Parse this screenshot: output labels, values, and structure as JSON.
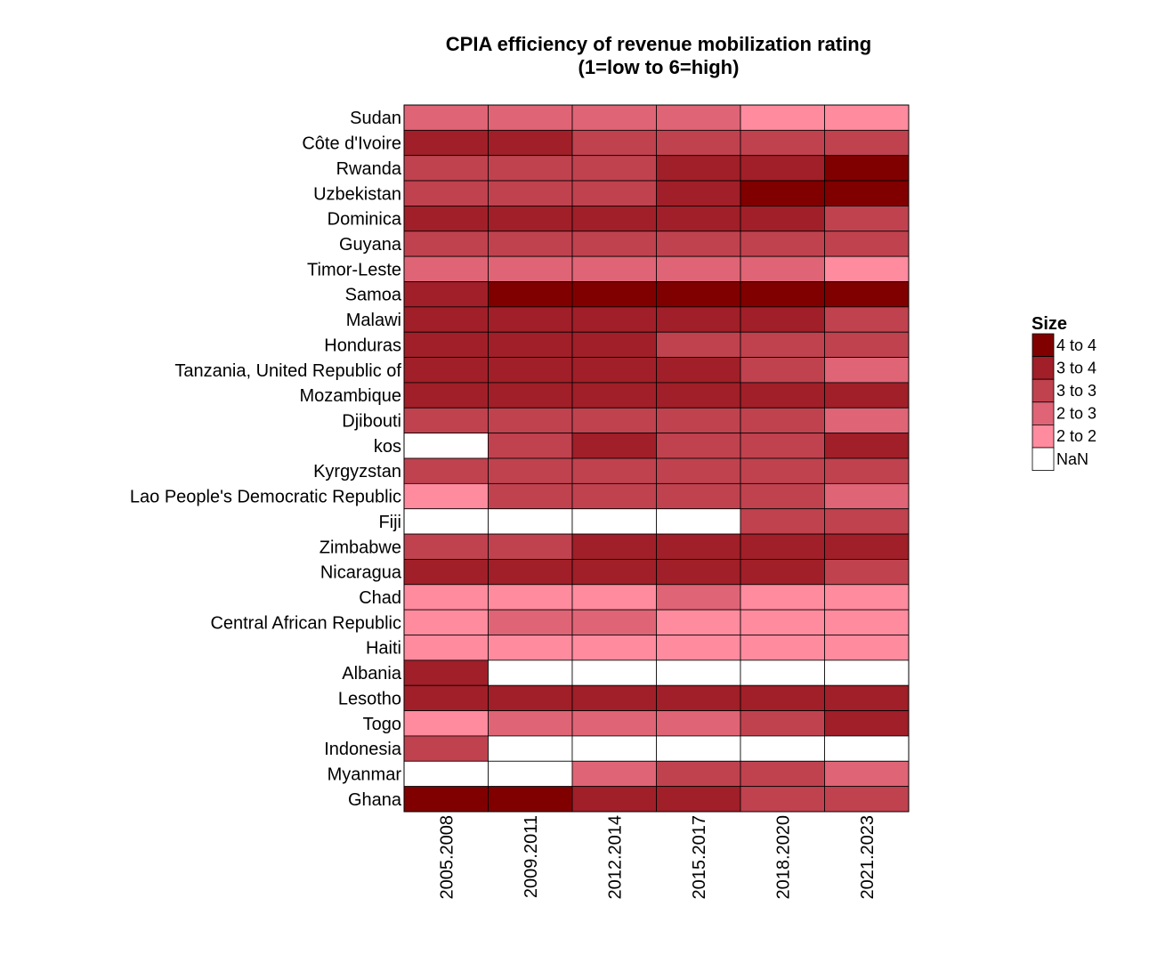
{
  "chart_data": {
    "type": "heatmap",
    "title": [
      "CPIA efficiency of revenue mobilization rating",
      "(1=low to 6=high)"
    ],
    "columns": [
      "2005.2008",
      "2009.2011",
      "2012.2014",
      "2015.2017",
      "2018.2020",
      "2021.2023"
    ],
    "rows": [
      "Sudan",
      "Côte d'Ivoire",
      "Rwanda",
      "Uzbekistan",
      "Dominica",
      "Guyana",
      "Timor-Leste",
      "Samoa",
      "Malawi",
      "Honduras",
      "Tanzania, United Republic of",
      "Mozambique",
      "Djibouti",
      "kos",
      "Kyrgyzstan",
      "Lao People's Democratic Republic",
      "Fiji",
      "Zimbabwe",
      "Nicaragua",
      "Chad",
      "Central African Republic",
      "Haiti",
      "Albania",
      "Lesotho",
      "Togo",
      "Indonesia",
      "Myanmar",
      "Ghana"
    ],
    "values": [
      [
        2.5,
        2.5,
        2.5,
        2.5,
        2.0,
        2.0
      ],
      [
        3.5,
        3.5,
        3.0,
        3.0,
        3.0,
        3.0
      ],
      [
        3.0,
        3.0,
        3.0,
        3.5,
        3.5,
        4.0
      ],
      [
        3.0,
        3.0,
        3.0,
        3.5,
        4.0,
        4.0
      ],
      [
        3.5,
        3.5,
        3.5,
        3.5,
        3.5,
        3.0
      ],
      [
        3.0,
        3.0,
        3.0,
        3.0,
        3.0,
        3.0
      ],
      [
        2.5,
        2.5,
        2.5,
        2.5,
        2.5,
        2.0
      ],
      [
        3.5,
        4.0,
        4.0,
        4.0,
        4.0,
        4.0
      ],
      [
        3.5,
        3.5,
        3.5,
        3.5,
        3.5,
        3.0
      ],
      [
        3.5,
        3.5,
        3.5,
        3.0,
        3.0,
        3.0
      ],
      [
        3.5,
        3.5,
        3.5,
        3.5,
        3.0,
        2.5
      ],
      [
        3.5,
        3.5,
        3.5,
        3.5,
        3.5,
        3.5
      ],
      [
        3.0,
        3.0,
        3.0,
        3.0,
        3.0,
        2.5
      ],
      [
        null,
        3.0,
        3.5,
        3.0,
        3.0,
        3.5
      ],
      [
        3.0,
        3.0,
        3.0,
        3.0,
        3.0,
        3.0
      ],
      [
        2.0,
        3.0,
        3.0,
        3.0,
        3.0,
        2.5
      ],
      [
        null,
        null,
        null,
        null,
        3.0,
        3.0
      ],
      [
        3.0,
        3.0,
        3.5,
        3.5,
        3.5,
        3.5
      ],
      [
        3.5,
        3.5,
        3.5,
        3.5,
        3.5,
        3.0
      ],
      [
        2.0,
        2.0,
        2.0,
        2.5,
        2.0,
        2.0
      ],
      [
        2.0,
        2.5,
        2.5,
        2.0,
        2.0,
        2.0
      ],
      [
        2.0,
        2.0,
        2.0,
        2.0,
        2.0,
        2.0
      ],
      [
        3.5,
        null,
        null,
        null,
        null,
        null
      ],
      [
        3.5,
        3.5,
        3.5,
        3.5,
        3.5,
        3.5
      ],
      [
        2.0,
        2.5,
        2.5,
        2.5,
        3.0,
        3.5
      ],
      [
        3.0,
        null,
        null,
        null,
        null,
        null
      ],
      [
        null,
        null,
        2.5,
        3.0,
        3.0,
        2.5
      ],
      [
        4.0,
        4.0,
        3.5,
        3.5,
        3.0,
        3.0
      ]
    ],
    "legend": {
      "title": "Size",
      "placement": "right",
      "entries": [
        {
          "label": "4 to 4",
          "min": 4.0,
          "max": 4.0,
          "color": "#800000"
        },
        {
          "label": "3 to 4",
          "min": 3.5,
          "max": 3.5,
          "color": "#a01f28"
        },
        {
          "label": "3 to 3",
          "min": 3.0,
          "max": 3.0,
          "color": "#c0424f"
        },
        {
          "label": "2 to 3",
          "min": 2.5,
          "max": 2.5,
          "color": "#df6475"
        },
        {
          "label": "2 to 2",
          "min": 2.0,
          "max": 2.0,
          "color": "#ff8b9e"
        },
        {
          "label": "NaN",
          "min": null,
          "max": null,
          "color": "#ffffff"
        }
      ]
    },
    "grid": true
  }
}
